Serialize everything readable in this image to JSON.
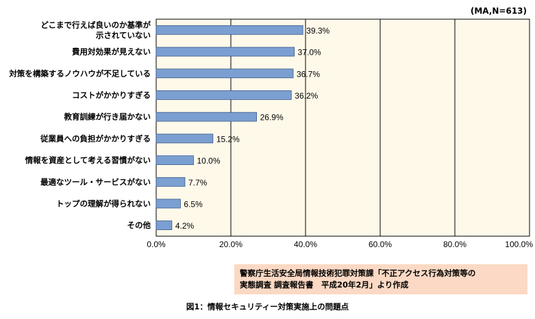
{
  "chart_data": {
    "type": "bar",
    "orientation": "horizontal",
    "note": "(MA,N=613)",
    "categories": [
      [
        "どこまで行えば良いのか基準が",
        "示されていない"
      ],
      [
        "費用対効果が見えない"
      ],
      [
        "対策を構築するノウハウが不足している"
      ],
      [
        "コストがかかりすぎる"
      ],
      [
        "教育訓練が行き届かない"
      ],
      [
        "従業員への負担がかかりすぎる"
      ],
      [
        "情報を資産として考える習慣がない"
      ],
      [
        "最適なツール・サービスがない"
      ],
      [
        "トップの理解が得られない"
      ],
      [
        "その他"
      ]
    ],
    "values": [
      39.3,
      37.0,
      36.7,
      36.2,
      26.9,
      15.2,
      10.0,
      7.7,
      6.5,
      4.2
    ],
    "value_labels": [
      "39.3%",
      "37.0%",
      "36.7%",
      "36.2%",
      "26.9%",
      "15.2%",
      "10.0%",
      "7.7%",
      "6.5%",
      "4.2%"
    ],
    "x_ticks": [
      "0.0%",
      "20.0%",
      "40.0%",
      "60.0%",
      "80.0%",
      "100.0%"
    ],
    "xlim": [
      0,
      100
    ],
    "grid": true,
    "colors": {
      "bar": "#7b9fd1",
      "bar_stroke": "#3a5a8a",
      "plot_bg": "#fff9ea",
      "grid": "#000000"
    }
  },
  "source_note": [
    "警察庁生活安全局情報技術犯罪対策課「不正アクセス行為対策等の",
    "実態調査 調査報告書　平成20年2月」より作成"
  ],
  "caption": "図1：情報セキュリティー対策実施上の問題点"
}
